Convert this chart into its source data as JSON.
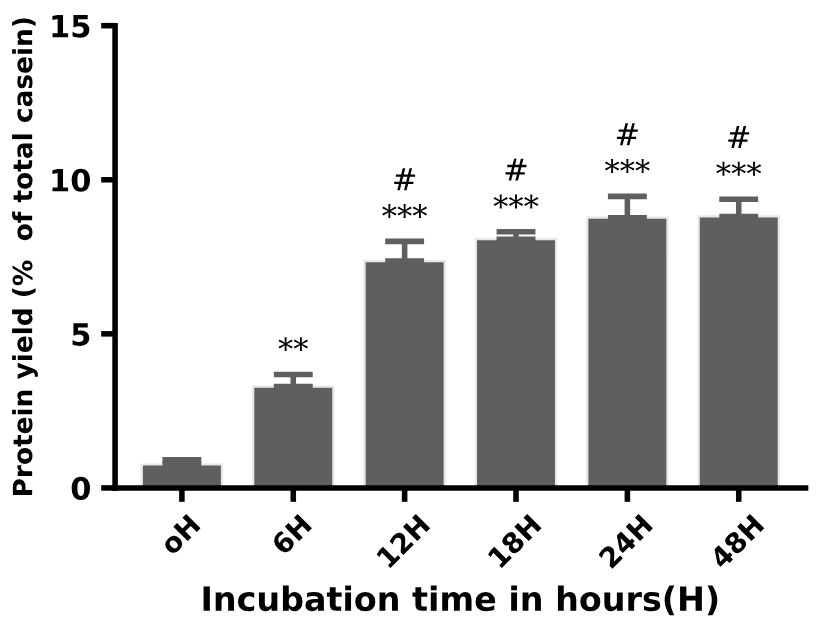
{
  "chart_data": {
    "type": "bar",
    "xlabel": "Incubation time in hours(H)",
    "ylabel": "Protein yield (%  of total casein)",
    "categories": [
      "oH",
      "6H",
      "12H",
      "18H",
      "24H",
      "48H"
    ],
    "values": [
      0.76,
      3.29,
      7.36,
      8.07,
      8.77,
      8.81
    ],
    "errors": [
      [
        0.76,
        0.91
      ],
      [
        3.29,
        3.68
      ],
      [
        7.36,
        8.0
      ],
      [
        8.07,
        8.31
      ],
      [
        8.77,
        9.46
      ],
      [
        8.81,
        9.37
      ]
    ],
    "value_labels": [
      null,
      "**",
      "#\n***",
      "#\n***",
      "#\n***",
      "#\n***"
    ],
    "color": "#5f5f5f",
    "ylim": [
      0,
      15
    ],
    "yticks": [
      0,
      5,
      10,
      15
    ],
    "grid": false,
    "legend": false
  }
}
